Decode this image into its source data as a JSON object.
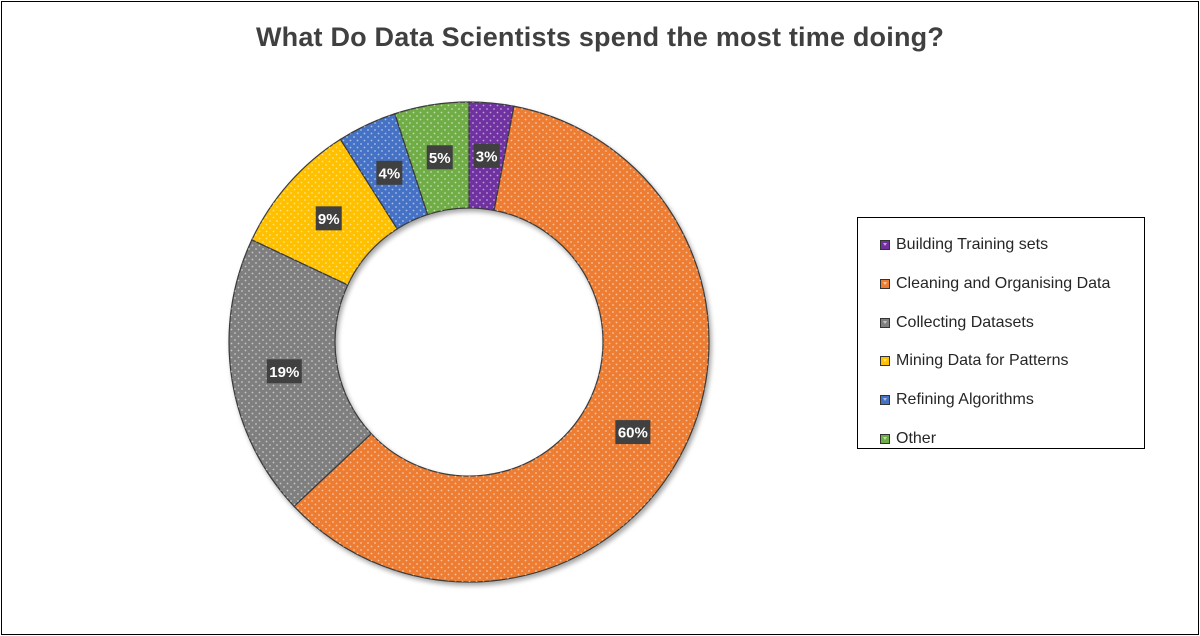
{
  "chart_data": {
    "type": "pie",
    "variant": "donut",
    "title": "What Do Data Scientists spend the most time doing?",
    "categories": [
      "Building Training sets",
      "Cleaning and Organising Data",
      "Collecting Datasets",
      "Mining Data for Patterns",
      "Refining Algorithms",
      "Other"
    ],
    "values": [
      3,
      60,
      19,
      9,
      4,
      5
    ],
    "data_labels": [
      "3%",
      "60%",
      "19%",
      "9%",
      "4%",
      "5%"
    ],
    "colors": [
      "#7030A0",
      "#ED7D31",
      "#7F7F7F",
      "#FFC000",
      "#4472C4",
      "#70AD47"
    ],
    "legend_position": "right",
    "start_angle_deg": 0,
    "direction": "clockwise"
  }
}
